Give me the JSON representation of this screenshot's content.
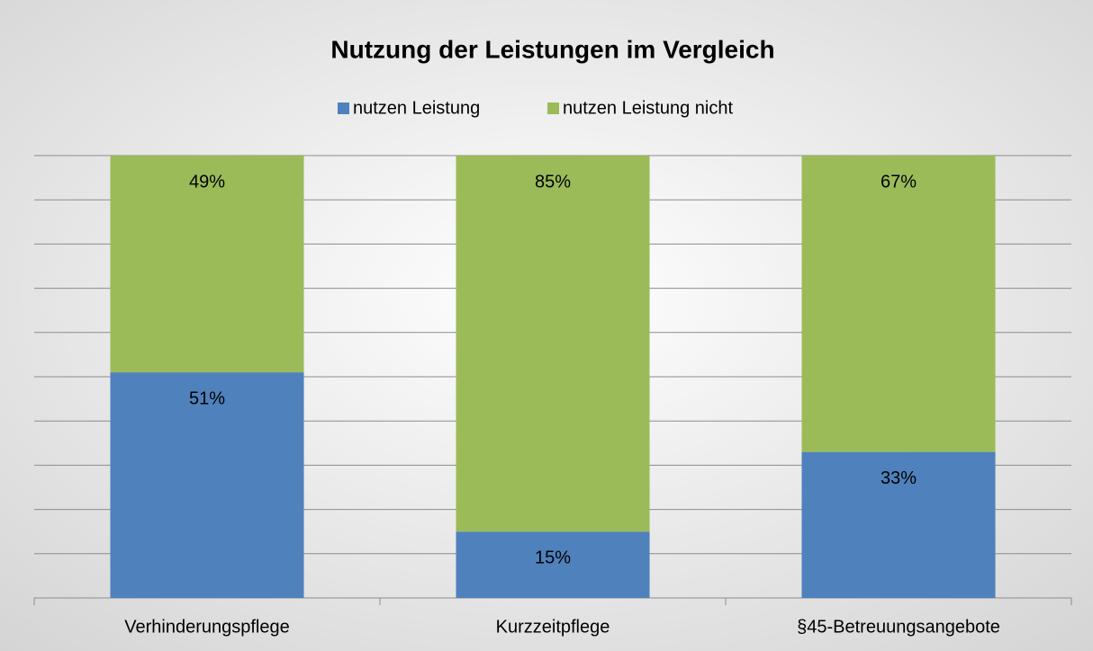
{
  "chart_data": {
    "type": "stacked_bar",
    "title": "Nutzung der Leistungen im Vergleich",
    "categories": [
      "Verhinderungspflege",
      "Kurzzeitpflege",
      "§45-Betreuungsangebote"
    ],
    "series": [
      {
        "name": "nutzen Leistung",
        "color": "#4f81bd",
        "values": [
          51,
          15,
          33
        ],
        "value_labels": [
          "51%",
          "15%",
          "33%"
        ]
      },
      {
        "name": "nutzen Leistung nicht",
        "color": "#9bbb59",
        "values": [
          49,
          85,
          67
        ],
        "value_labels": [
          "49%",
          "85%",
          "67%"
        ]
      }
    ],
    "ylim": [
      0,
      100
    ],
    "yticks": [
      0,
      10,
      20,
      30,
      40,
      50,
      60,
      70,
      80,
      90,
      100
    ],
    "grid": true,
    "legend": "top"
  }
}
